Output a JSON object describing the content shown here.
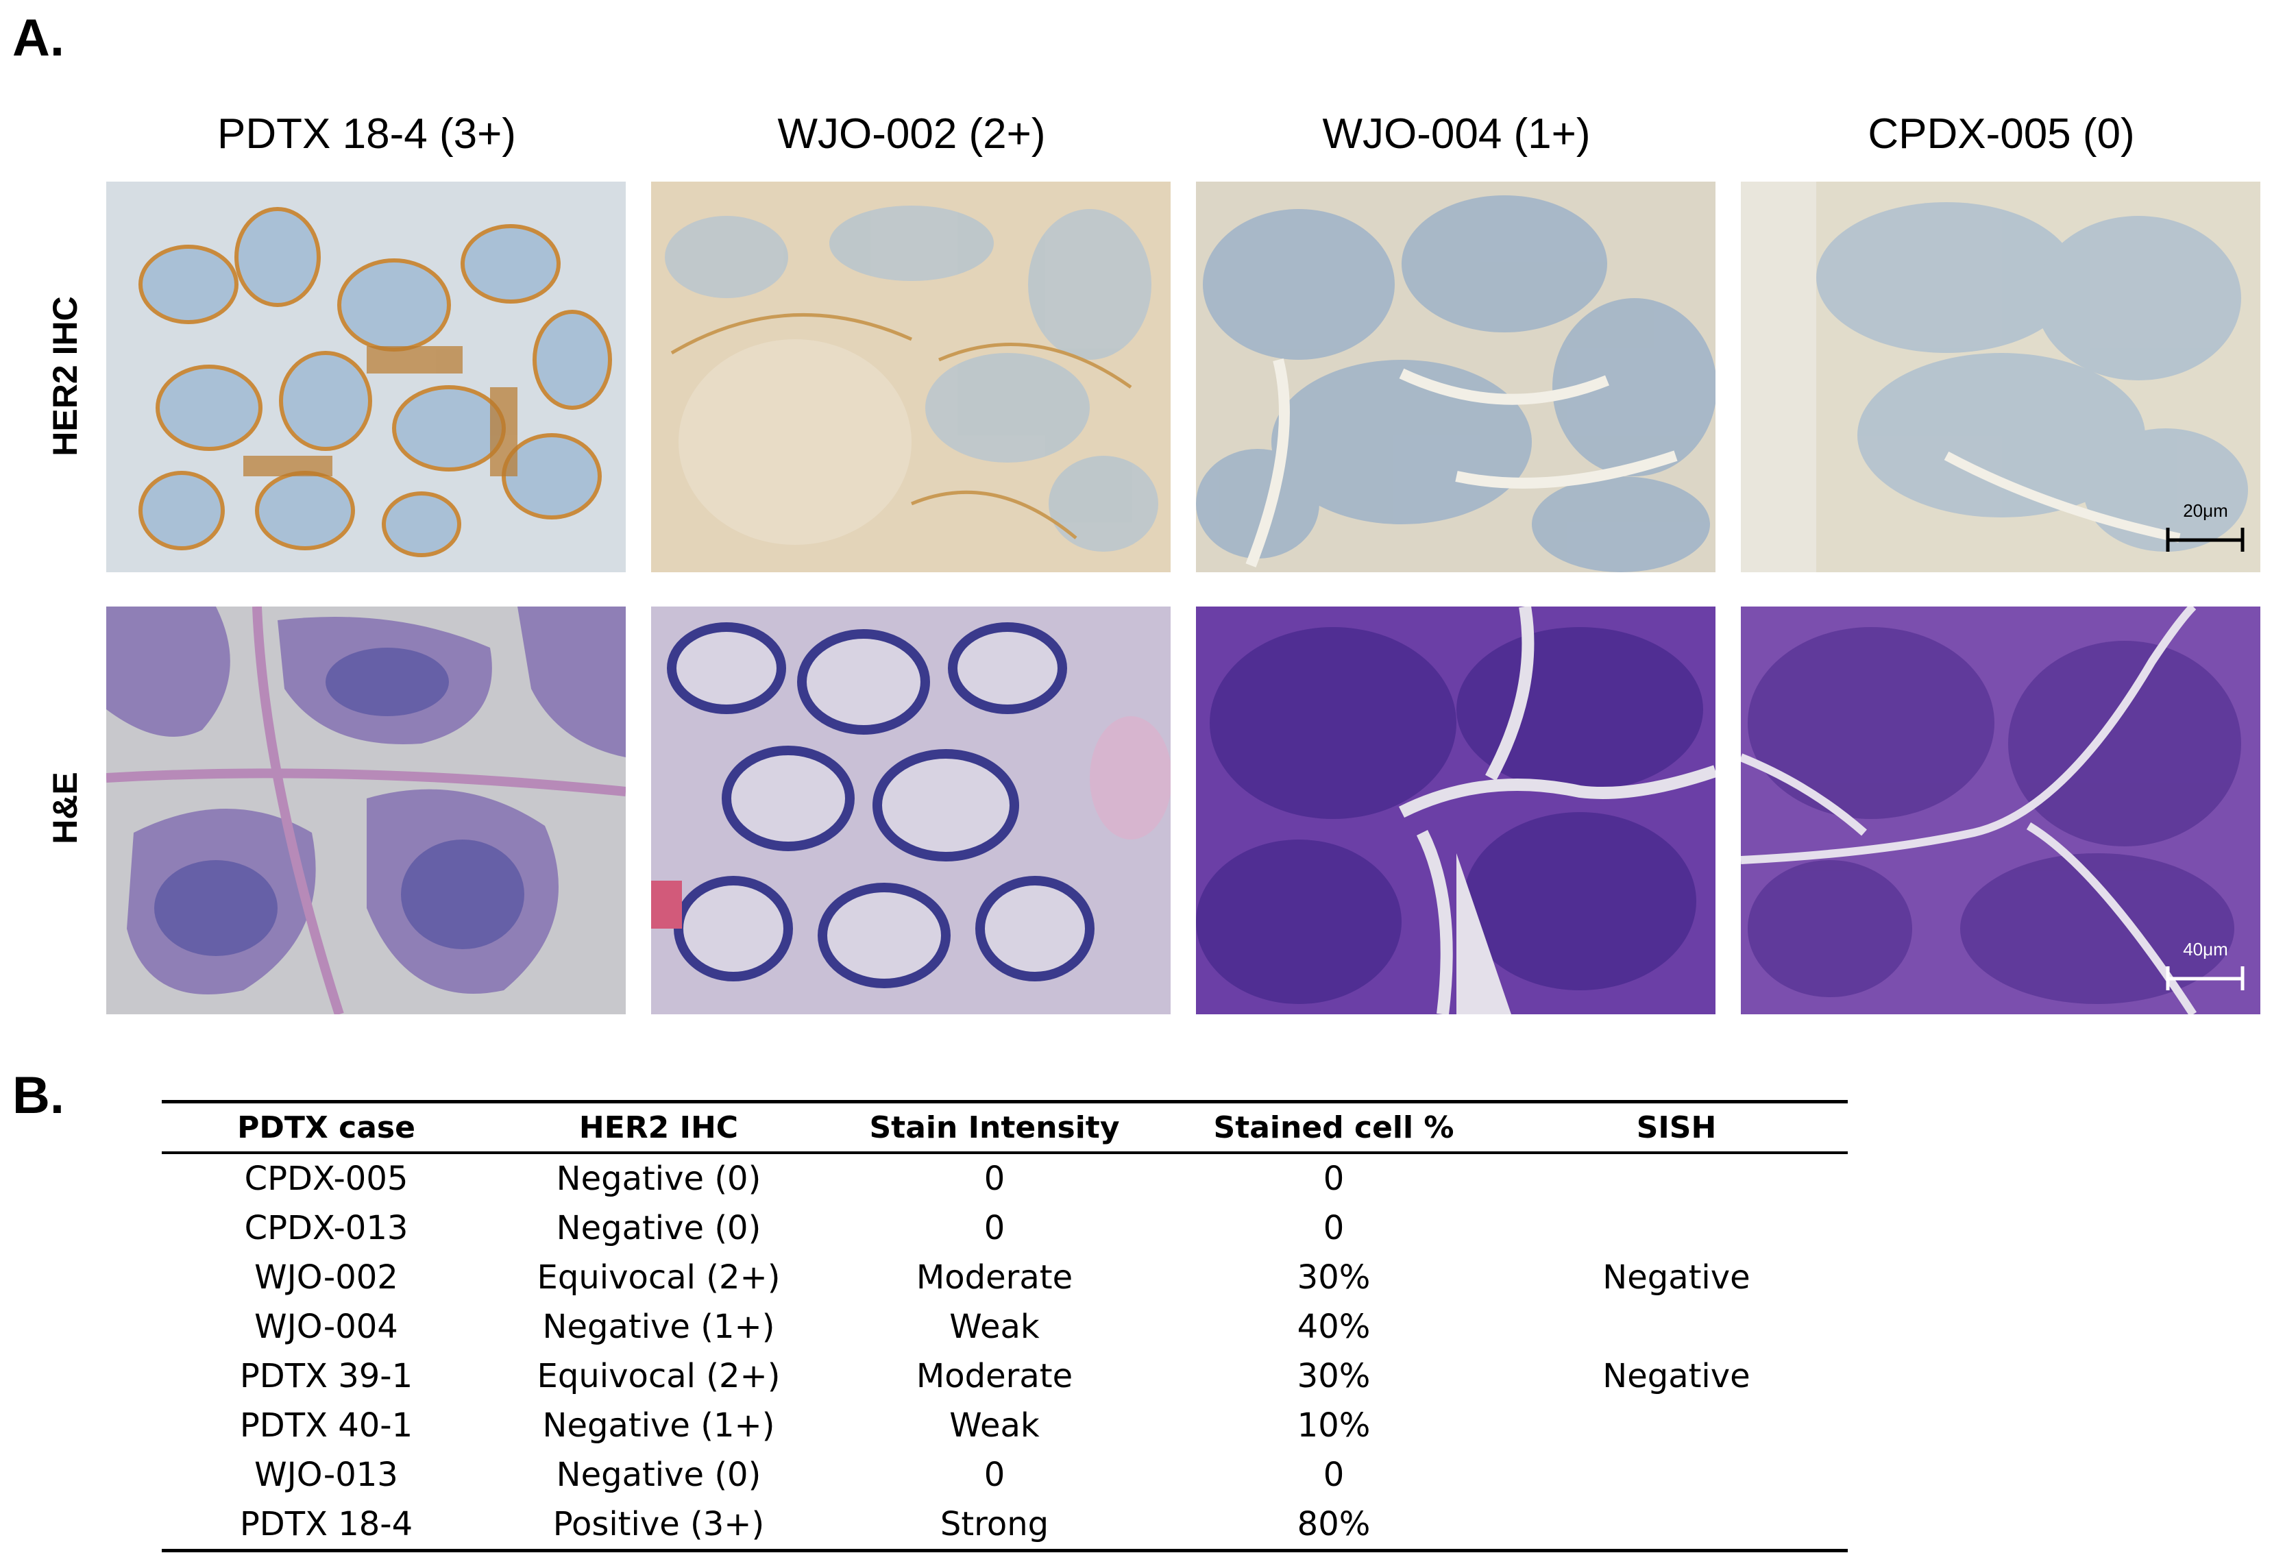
{
  "panel_a": {
    "letter": "A.",
    "columns": [
      "PDTX 18-4 (3+)",
      "WJO-002 (2+)",
      "WJO-004 (1+)",
      "CPDX-005 (0)"
    ],
    "rows": [
      "HER2 IHC",
      "H&E"
    ],
    "scale_bars": {
      "ihc": "20μm",
      "he": "40μm"
    }
  },
  "panel_b": {
    "letter": "B.",
    "headers": [
      "PDTX case",
      "HER2 IHC",
      "Stain Intensity",
      "Stained cell %",
      "SISH"
    ],
    "rows": [
      [
        "CPDX-005",
        "Negative (0)",
        "0",
        "0",
        ""
      ],
      [
        "CPDX-013",
        "Negative (0)",
        "0",
        "0",
        ""
      ],
      [
        "WJO-002",
        "Equivocal (2+)",
        "Moderate",
        "30%",
        "Negative"
      ],
      [
        "WJO-004",
        "Negative (1+)",
        "Weak",
        "40%",
        ""
      ],
      [
        "PDTX 39-1",
        "Equivocal (2+)",
        "Moderate",
        "30%",
        "Negative"
      ],
      [
        "PDTX 40-1",
        "Negative (1+)",
        "Weak",
        "10%",
        ""
      ],
      [
        "WJO-013",
        "Negative (0)",
        "0",
        "0",
        ""
      ],
      [
        "PDTX 18-4",
        "Positive (3+)",
        "Strong",
        "80%",
        ""
      ]
    ]
  }
}
